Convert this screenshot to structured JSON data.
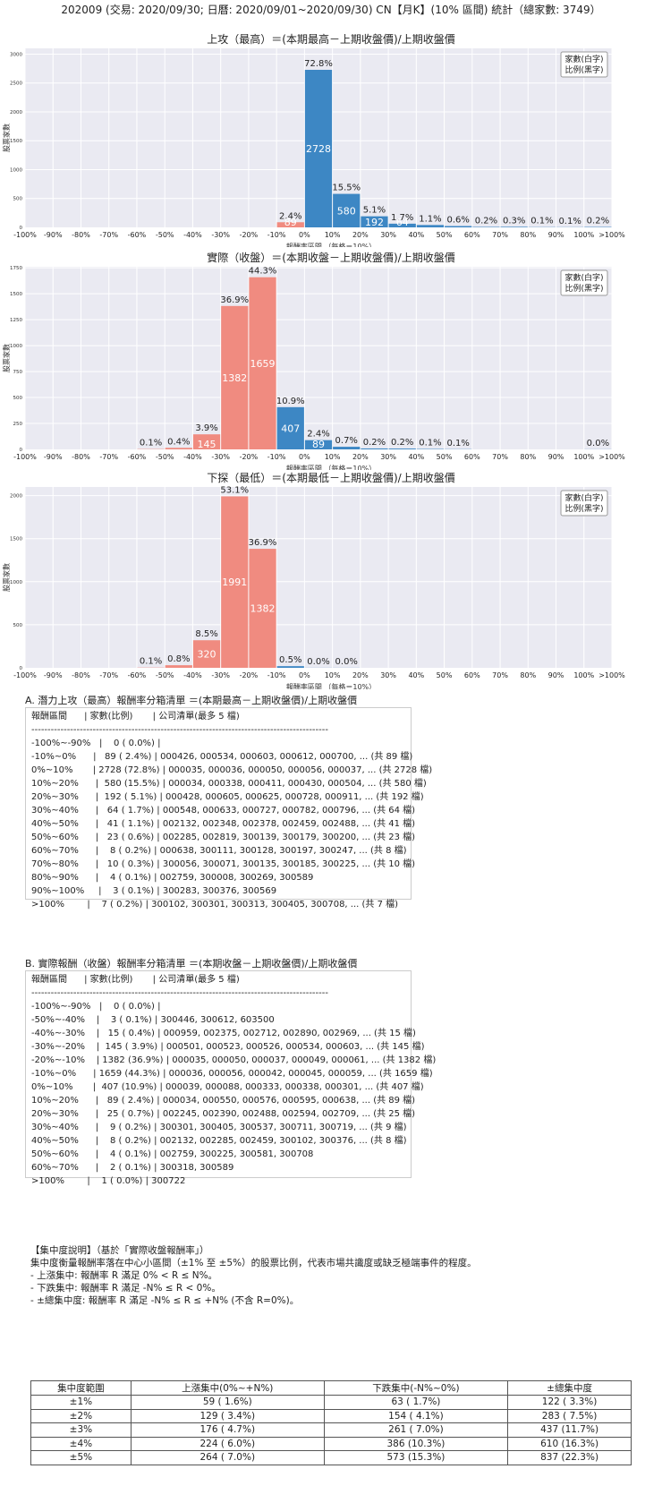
{
  "page_title": "202009 (交易: 2020/09/30; 日曆: 2020/09/01~2020/09/30) CN【月K】(10% 區間) 統計（總家數: 3749）",
  "chart_data": [
    {
      "type": "bar",
      "title": "上攻（最高）＝(本期最高－上期收盤價)/上期收盤價",
      "xlabel": "報酬率區間 （每格＝10%）",
      "ylabel": "股票家數",
      "legend": [
        "家數(白字)",
        "比例(黑字)"
      ],
      "x_ticks": [
        "-100%",
        "-90%",
        "-80%",
        "-70%",
        "-60%",
        "-50%",
        "-40%",
        "-30%",
        "-20%",
        "-10%",
        "0%",
        "10%",
        "20%",
        "30%",
        "40%",
        "50%",
        "60%",
        "70%",
        "80%",
        "90%",
        "100%",
        ">100%"
      ],
      "y_ticks": [
        0,
        500,
        1000,
        1500,
        2000,
        2500,
        3000
      ],
      "ylim": [
        0,
        3100
      ],
      "bins": [
        {
          "bin": 10,
          "count": 89,
          "pct": "2.4%",
          "color": "#f08b80",
          "show_count": "89"
        },
        {
          "bin": 11,
          "count": 2728,
          "pct": "72.8%",
          "color": "#3d87c4",
          "show_count": "2728"
        },
        {
          "bin": 12,
          "count": 580,
          "pct": "15.5%",
          "color": "#3d87c4",
          "show_count": "580"
        },
        {
          "bin": 13,
          "count": 192,
          "pct": "5.1%",
          "color": "#3d87c4",
          "show_count": "192"
        },
        {
          "bin": 14,
          "count": 64,
          "pct": "1.7%",
          "color": "#3d87c4",
          "show_count": "64"
        },
        {
          "bin": 15,
          "count": 41,
          "pct": "1.1%",
          "color": "#3d87c4",
          "show_count": ""
        },
        {
          "bin": 16,
          "count": 23,
          "pct": "0.6%",
          "color": "#3d87c4",
          "show_count": ""
        },
        {
          "bin": 17,
          "count": 8,
          "pct": "0.2%",
          "color": "#3d87c4",
          "show_count": ""
        },
        {
          "bin": 18,
          "count": 10,
          "pct": "0.3%",
          "color": "#3d87c4",
          "show_count": ""
        },
        {
          "bin": 19,
          "count": 4,
          "pct": "0.1%",
          "color": "#3d87c4",
          "show_count": ""
        },
        {
          "bin": 20,
          "count": 3,
          "pct": "0.1%",
          "color": "#3d87c4",
          "show_count": ""
        },
        {
          "bin": 21,
          "count": 7,
          "pct": "0.2%",
          "color": "#3d87c4",
          "show_count": ""
        }
      ]
    },
    {
      "type": "bar",
      "title": "實際（收盤）＝(本期收盤－上期收盤價)/上期收盤價",
      "xlabel": "報酬率區間 （每格＝10%）",
      "ylabel": "股票家數",
      "legend": [
        "家數(白字)",
        "比例(黑字)"
      ],
      "x_ticks": [
        "-100%",
        "-90%",
        "-80%",
        "-70%",
        "-60%",
        "-50%",
        "-40%",
        "-30%",
        "-20%",
        "-10%",
        "0%",
        "10%",
        "20%",
        "30%",
        "40%",
        "50%",
        "60%",
        "70%",
        "80%",
        "90%",
        "100%",
        ">100%"
      ],
      "y_ticks": [
        0,
        250,
        500,
        750,
        1000,
        1250,
        1500,
        1750
      ],
      "ylim": [
        0,
        1760
      ],
      "bins": [
        {
          "bin": 5,
          "count": 3,
          "pct": "0.1%",
          "color": "#f08b80",
          "show_count": ""
        },
        {
          "bin": 6,
          "count": 15,
          "pct": "0.4%",
          "color": "#f08b80",
          "show_count": ""
        },
        {
          "bin": 7,
          "count": 145,
          "pct": "3.9%",
          "color": "#f08b80",
          "show_count": "145"
        },
        {
          "bin": 8,
          "count": 1382,
          "pct": "36.9%",
          "color": "#f08b80",
          "show_count": "1382"
        },
        {
          "bin": 9,
          "count": 1659,
          "pct": "44.3%",
          "color": "#f08b80",
          "show_count": "1659"
        },
        {
          "bin": 10,
          "count": 407,
          "pct": "10.9%",
          "color": "#3d87c4",
          "show_count": "407"
        },
        {
          "bin": 11,
          "count": 89,
          "pct": "2.4%",
          "color": "#3d87c4",
          "show_count": "89"
        },
        {
          "bin": 12,
          "count": 25,
          "pct": "0.7%",
          "color": "#3d87c4",
          "show_count": ""
        },
        {
          "bin": 13,
          "count": 9,
          "pct": "0.2%",
          "color": "#3d87c4",
          "show_count": ""
        },
        {
          "bin": 14,
          "count": 8,
          "pct": "0.2%",
          "color": "#3d87c4",
          "show_count": ""
        },
        {
          "bin": 15,
          "count": 4,
          "pct": "0.1%",
          "color": "#3d87c4",
          "show_count": ""
        },
        {
          "bin": 16,
          "count": 2,
          "pct": "0.1%",
          "color": "#3d87c4",
          "show_count": ""
        },
        {
          "bin": 21,
          "count": 1,
          "pct": "0.0%",
          "color": "#3d87c4",
          "show_count": ""
        }
      ]
    },
    {
      "type": "bar",
      "title": "下探（最低）＝(本期最低－上期收盤價)/上期收盤價",
      "xlabel": "報酬率區間 （每格＝10%）",
      "ylabel": "股票家數",
      "legend": [
        "家數(白字)",
        "比例(黑字)"
      ],
      "x_ticks": [
        "-100%",
        "-90%",
        "-80%",
        "-70%",
        "-60%",
        "-50%",
        "-40%",
        "-30%",
        "-20%",
        "-10%",
        "0%",
        "10%",
        "20%",
        "30%",
        "40%",
        "50%",
        "60%",
        "70%",
        "80%",
        "90%",
        "100%",
        ">100%"
      ],
      "y_ticks": [
        0,
        500,
        1000,
        1500,
        2000
      ],
      "ylim": [
        0,
        2100
      ],
      "bins": [
        {
          "bin": 5,
          "count": 3,
          "pct": "0.1%",
          "color": "#f08b80",
          "show_count": ""
        },
        {
          "bin": 6,
          "count": 30,
          "pct": "0.8%",
          "color": "#f08b80",
          "show_count": ""
        },
        {
          "bin": 7,
          "count": 320,
          "pct": "8.5%",
          "color": "#f08b80",
          "show_count": "320"
        },
        {
          "bin": 8,
          "count": 1991,
          "pct": "53.1%",
          "color": "#f08b80",
          "show_count": "1991"
        },
        {
          "bin": 9,
          "count": 1382,
          "pct": "36.9%",
          "color": "#f08b80",
          "show_count": "1382"
        },
        {
          "bin": 10,
          "count": 19,
          "pct": "0.5%",
          "color": "#3d87c4",
          "show_count": ""
        },
        {
          "bin": 11,
          "count": 1,
          "pct": "0.0%",
          "color": "#3d87c4",
          "show_count": ""
        },
        {
          "bin": 12,
          "count": 1,
          "pct": "0.0%",
          "color": "#3d87c4",
          "show_count": ""
        }
      ]
    }
  ],
  "section_a": {
    "title": "A. 潛力上攻（最高）報酬率分箱清單 ＝(本期最高－上期收盤價)/上期收盤價",
    "lines": [
      "報酬區間      | 家數(比例)       | 公司清單(最多 5 檔)",
      "--------------------------------------------------------------------------------------------",
      "-100%~-90%   |    0 ( 0.0%) |",
      "-10%~0%      |   89 ( 2.4%) | 000426, 000534, 000603, 000612, 000700, ... (共 89 檔)",
      "0%~10%       | 2728 (72.8%) | 000035, 000036, 000050, 000056, 000037, ... (共 2728 檔)",
      "10%~20%      |  580 (15.5%) | 000034, 000338, 000411, 000430, 000504, ... (共 580 檔)",
      "20%~30%      |  192 ( 5.1%) | 000428, 000605, 000625, 000728, 000911, ... (共 192 檔)",
      "30%~40%      |   64 ( 1.7%) | 000548, 000633, 000727, 000782, 000796, ... (共 64 檔)",
      "40%~50%      |   41 ( 1.1%) | 002132, 002348, 002378, 002459, 002488, ... (共 41 檔)",
      "50%~60%      |   23 ( 0.6%) | 002285, 002819, 300139, 300179, 300200, ... (共 23 檔)",
      "60%~70%      |    8 ( 0.2%) | 000638, 300111, 300128, 300197, 300247, ... (共 8 檔)",
      "70%~80%      |   10 ( 0.3%) | 300056, 300071, 300135, 300185, 300225, ... (共 10 檔)",
      "80%~90%      |    4 ( 0.1%) | 002759, 300008, 300269, 300589",
      "90%~100%     |    3 ( 0.1%) | 300283, 300376, 300569",
      ">100%        |    7 ( 0.2%) | 300102, 300301, 300313, 300405, 300708, ... (共 7 檔)"
    ]
  },
  "section_b": {
    "title": "B. 實際報酬（收盤）報酬率分箱清單 ＝(本期收盤－上期收盤價)/上期收盤價",
    "lines": [
      "報酬區間      | 家數(比例)       | 公司清單(最多 5 檔)",
      "--------------------------------------------------------------------------------------------",
      "-100%~-90%   |    0 ( 0.0%) |",
      "-50%~-40%    |    3 ( 0.1%) | 300446, 300612, 603500",
      "-40%~-30%    |   15 ( 0.4%) | 000959, 002375, 002712, 002890, 002969, ... (共 15 檔)",
      "-30%~-20%    |  145 ( 3.9%) | 000501, 000523, 000526, 000534, 000603, ... (共 145 檔)",
      "-20%~-10%    | 1382 (36.9%) | 000035, 000050, 000037, 000049, 000061, ... (共 1382 檔)",
      "-10%~0%      | 1659 (44.3%) | 000036, 000056, 000042, 000045, 000059, ... (共 1659 檔)",
      "0%~10%       |  407 (10.9%) | 000039, 000088, 000333, 000338, 000301, ... (共 407 檔)",
      "10%~20%      |   89 ( 2.4%) | 000034, 000550, 000576, 000595, 000638, ... (共 89 檔)",
      "20%~30%      |   25 ( 0.7%) | 002245, 002390, 002488, 002594, 002709, ... (共 25 檔)",
      "30%~40%      |    9 ( 0.2%) | 300301, 300405, 300537, 300711, 300719, ... (共 9 檔)",
      "40%~50%      |    8 ( 0.2%) | 002132, 002285, 002459, 300102, 300376, ... (共 8 檔)",
      "50%~60%      |    4 ( 0.1%) | 002759, 300225, 300581, 300708",
      "60%~70%      |    2 ( 0.1%) | 300318, 300589",
      ">100%        |    1 ( 0.0%) | 300722"
    ]
  },
  "concentration": {
    "lines": [
      "【集中度說明】（基於「實際收盤報酬率」）",
      "集中度衡量報酬率落在中心小區間（±1% 至 ±5%）的股票比例，代表市場共識度或缺乏極端事件的程度。",
      " - 上漲集中: 報酬率 R 滿足 0% < R ≤ N%。",
      " - 下跌集中: 報酬率 R 滿足 -N% ≤ R < 0%。",
      " - ±總集中度: 報酬率 R 滿足 -N% ≤ R ≤ +N% (不含 R=0%)。"
    ],
    "headers": [
      "集中度範圍",
      "上漲集中(0%~+N%)",
      "下跌集中(-N%~0%)",
      "±總集中度"
    ],
    "rows": [
      [
        "±1%",
        "59 ( 1.6%)",
        "63 ( 1.7%)",
        "122 ( 3.3%)"
      ],
      [
        "±2%",
        "129 ( 3.4%)",
        "154 ( 4.1%)",
        "283 ( 7.5%)"
      ],
      [
        "±3%",
        "176 ( 4.7%)",
        "261 ( 7.0%)",
        "437 (11.7%)"
      ],
      [
        "±4%",
        "224 ( 6.0%)",
        "386 (10.3%)",
        "610 (16.3%)"
      ],
      [
        "±5%",
        "264 ( 7.0%)",
        "573 (15.3%)",
        "837 (22.3%)"
      ]
    ]
  }
}
